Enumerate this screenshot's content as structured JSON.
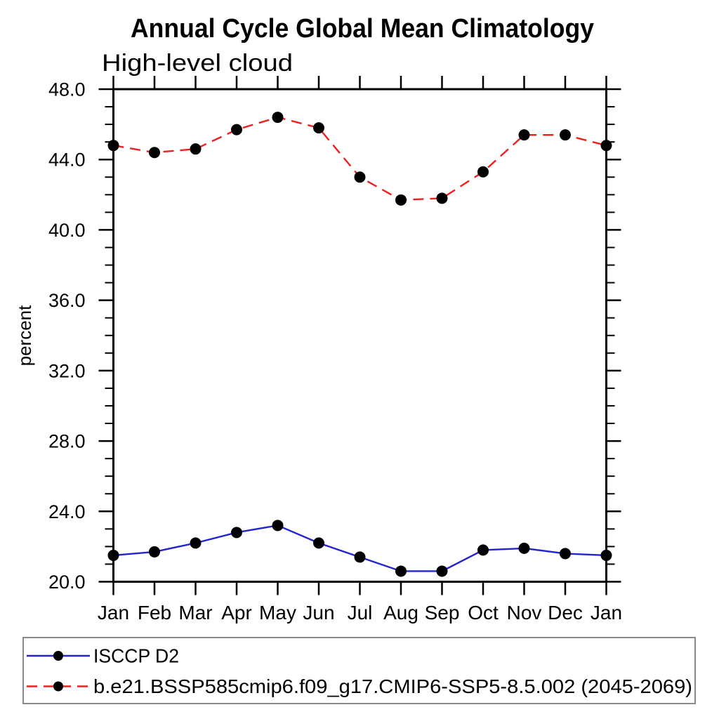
{
  "chart_data": {
    "type": "line",
    "title": "Annual Cycle Global Mean Climatology",
    "subtitle": "High-level cloud",
    "xlabel": "",
    "ylabel": "percent",
    "ylim": [
      20.0,
      48.0
    ],
    "y_major_tick_interval": 4.0,
    "y_minor_tick_interval": 1.0,
    "y_tick_decimals": 1,
    "grid": false,
    "legend_position": "bottom-left-box",
    "axis_color": "#000000",
    "legend_border_color": "#8a8a8a",
    "categories": [
      "Jan",
      "Feb",
      "Mar",
      "Apr",
      "May",
      "Jun",
      "Jul",
      "Aug",
      "Sep",
      "Oct",
      "Nov",
      "Dec",
      "Jan"
    ],
    "series": [
      {
        "name": "ISCCP D2",
        "line_color": "#2323cf",
        "line_style": "solid",
        "marker": "filled-circle",
        "marker_color": "#000000",
        "values": [
          21.5,
          21.7,
          22.2,
          22.8,
          23.2,
          22.2,
          21.4,
          20.6,
          20.6,
          21.8,
          21.9,
          21.6,
          21.5
        ]
      },
      {
        "name": "b.e21.BSSP585cmip6.f09_g17.CMIP6-SSP5-8.5.002 (2045-2069)",
        "line_color": "#ef1f1f",
        "line_style": "dashed",
        "marker": "filled-circle",
        "marker_color": "#000000",
        "values": [
          44.8,
          44.4,
          44.6,
          45.7,
          46.4,
          45.8,
          43.0,
          41.7,
          41.8,
          43.3,
          45.4,
          45.4,
          44.8
        ]
      }
    ]
  }
}
